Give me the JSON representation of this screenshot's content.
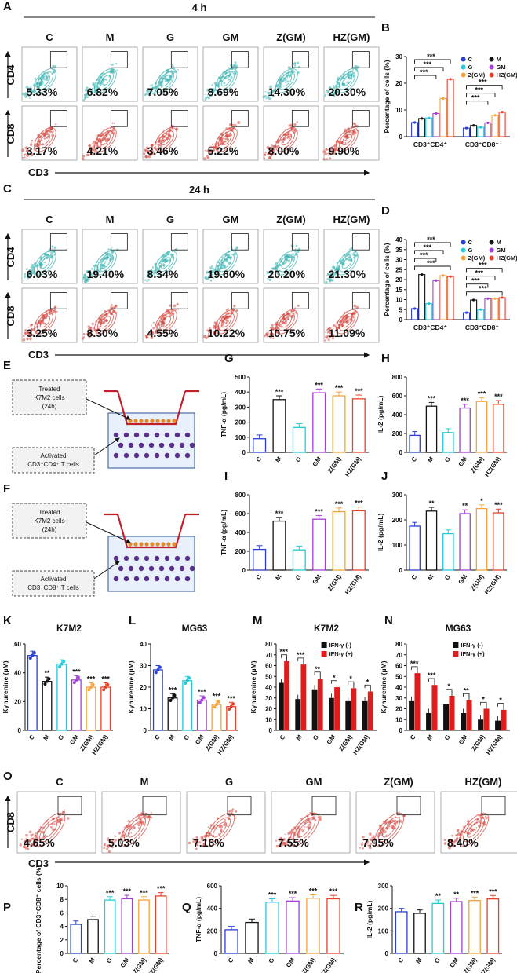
{
  "panel_letters": [
    "A",
    "B",
    "C",
    "D",
    "E",
    "F",
    "G",
    "H",
    "I",
    "J",
    "K",
    "L",
    "M",
    "N",
    "O",
    "P",
    "Q",
    "R"
  ],
  "group_labels": [
    "C",
    "M",
    "G",
    "GM",
    "Z(GM)",
    "HZ(GM)"
  ],
  "axis_names": {
    "cd4": "CD4",
    "cd8": "CD8",
    "cd3": "CD3"
  },
  "flow_A": {
    "header": "4 h",
    "cd4_percent": [
      "5.33%",
      "6.82%",
      "7.05%",
      "8.69%",
      "14.30%",
      "20.30%"
    ],
    "cd8_percent": [
      "3.17%",
      "4.21%",
      "3.46%",
      "5.22%",
      "8.00%",
      "9.90%"
    ]
  },
  "flow_C": {
    "header": "24 h",
    "cd4_percent": [
      "6.03%",
      "19.40%",
      "8.34%",
      "19.60%",
      "20.20%",
      "21.30%"
    ],
    "cd8_percent": [
      "3.25%",
      "8.30%",
      "4.55%",
      "10.22%",
      "10.75%",
      "11.09%"
    ]
  },
  "flow_O": {
    "cd8_percent": [
      "4.65%",
      "5.03%",
      "7.16%",
      "7.55%",
      "7.95%",
      "8.40%"
    ]
  },
  "diagram_E": {
    "box_top": [
      "Treated",
      "K7M2 cells",
      "(24h)"
    ],
    "box_bottom": [
      "Activated",
      "CD3⁺CD4⁺ T cells"
    ]
  },
  "diagram_F": {
    "box_top": [
      "Treated",
      "K7M2 cells",
      "(24h)"
    ],
    "box_bottom": [
      "Activated",
      "CD3⁺CD8⁺ T cells"
    ]
  },
  "colors": {
    "C": "#2a3fd6",
    "M": "#111111",
    "G": "#26c9d9",
    "GM": "#a33fd6",
    "Z(GM)": "#f5a43a",
    "HZ(GM)": "#e8402a",
    "teal": "#3bb3b0",
    "red": "#d4473f",
    "ifn_neg": "#111111",
    "ifn_pos": "#e01d1d"
  },
  "chart_data": [
    {
      "id": "B",
      "type": "bar",
      "categories": [
        "CD3⁺CD4⁺",
        "CD3⁺CD8⁺"
      ],
      "ylabel": "Percentage of cells (%)",
      "ylim": [
        0,
        30
      ],
      "yticks": [
        "0",
        "10",
        "20",
        "30"
      ],
      "legend": [
        "C",
        "M",
        "G",
        "GM",
        "Z(GM)",
        "HZ(GM)"
      ],
      "series": [
        {
          "name": "C",
          "values": [
            5.3,
            3.2
          ]
        },
        {
          "name": "M",
          "values": [
            6.8,
            4.2
          ]
        },
        {
          "name": "G",
          "values": [
            7.0,
            3.5
          ]
        },
        {
          "name": "GM",
          "values": [
            8.7,
            5.2
          ]
        },
        {
          "name": "Z(GM)",
          "values": [
            14.3,
            8.0
          ]
        },
        {
          "name": "HZ(GM)",
          "values": [
            21.5,
            9.2
          ]
        }
      ],
      "annotations": [
        "***",
        "***",
        "***",
        "***",
        "***",
        "***"
      ]
    },
    {
      "id": "D",
      "type": "bar",
      "categories": [
        "CD3⁺CD4⁺",
        "CD3⁺CD8⁺"
      ],
      "ylabel": "Percentage of cells (%)",
      "ylim": [
        0,
        40
      ],
      "yticks": [
        "0",
        "5",
        "10",
        "15",
        "20",
        "25",
        "30",
        "35",
        "40"
      ],
      "legend": [
        "C",
        "M",
        "G",
        "GM",
        "Z(GM)",
        "HZ(GM)"
      ],
      "series": [
        {
          "name": "C",
          "values": [
            5.5,
            3.5
          ]
        },
        {
          "name": "M",
          "values": [
            22.5,
            9.8
          ]
        },
        {
          "name": "G",
          "values": [
            8.0,
            5.0
          ]
        },
        {
          "name": "GM",
          "values": [
            19.5,
            10.5
          ]
        },
        {
          "name": "Z(GM)",
          "values": [
            22.0,
            10.5
          ]
        },
        {
          "name": "HZ(GM)",
          "values": [
            21.5,
            11.0
          ]
        }
      ],
      "annotations": [
        "***",
        "***",
        "***",
        "***",
        "***",
        "***",
        "***",
        "***"
      ]
    },
    {
      "id": "G",
      "type": "bar",
      "ylabel": "TNF-α (pg/mL)",
      "ylim": [
        0,
        500
      ],
      "yticks": [
        "0",
        "100",
        "200",
        "300",
        "400",
        "500"
      ],
      "categories": [
        "C",
        "M",
        "G",
        "GM",
        "Z(GM)",
        "HZ(GM)"
      ],
      "values": [
        90,
        350,
        165,
        395,
        375,
        355
      ],
      "stars": [
        "",
        "***",
        "",
        "***",
        "***",
        "***"
      ]
    },
    {
      "id": "H",
      "type": "bar",
      "ylabel": "IL-2 (pg/mL)",
      "ylim": [
        0,
        800
      ],
      "yticks": [
        "0",
        "200",
        "400",
        "600",
        "800"
      ],
      "categories": [
        "C",
        "M",
        "G",
        "GM",
        "Z(GM)",
        "HZ(GM)"
      ],
      "values": [
        180,
        490,
        210,
        470,
        540,
        510
      ],
      "stars": [
        "",
        "***",
        "",
        "***",
        "***",
        "***"
      ]
    },
    {
      "id": "I",
      "type": "bar",
      "ylabel": "TNF-α (pg/mL)",
      "ylim": [
        0,
        800
      ],
      "yticks": [
        "0",
        "200",
        "400",
        "600",
        "800"
      ],
      "categories": [
        "C",
        "M",
        "G",
        "GM",
        "Z(GM)",
        "HZ(GM)"
      ],
      "values": [
        220,
        520,
        215,
        540,
        620,
        630
      ],
      "stars": [
        "",
        "***",
        "",
        "***",
        "***",
        "***"
      ]
    },
    {
      "id": "J",
      "type": "bar",
      "ylabel": "IL-2 (pg/mL)",
      "ylim": [
        0,
        300
      ],
      "yticks": [
        "0",
        "100",
        "200",
        "300"
      ],
      "categories": [
        "C",
        "M",
        "G",
        "GM",
        "Z(GM)",
        "HZ(GM)"
      ],
      "values": [
        175,
        235,
        145,
        225,
        245,
        228
      ],
      "stars": [
        "",
        "**",
        "",
        "**",
        "*",
        "***"
      ]
    },
    {
      "id": "K",
      "type": "bar",
      "title": "K7M2",
      "ylabel": "Kynurenine (μM)",
      "ylim": [
        0,
        60
      ],
      "yticks": [
        "0",
        "20",
        "40",
        "60"
      ],
      "categories": [
        "C",
        "M",
        "G",
        "GM",
        "Z(GM)",
        "HZ(GM)"
      ],
      "values": [
        52,
        34,
        46,
        35,
        30,
        30
      ],
      "stars": [
        "",
        "**",
        "",
        "***",
        "***",
        "***"
      ]
    },
    {
      "id": "L",
      "type": "bar",
      "title": "MG63",
      "ylabel": "Kynurenine (μM)",
      "ylim": [
        0,
        40
      ],
      "yticks": [
        "0",
        "10",
        "20",
        "30",
        "40"
      ],
      "categories": [
        "C",
        "M",
        "G",
        "GM",
        "Z(GM)",
        "HZ(GM)"
      ],
      "values": [
        28,
        15,
        23,
        14,
        12,
        11
      ],
      "stars": [
        "",
        "***",
        "",
        "***",
        "***",
        "***"
      ]
    },
    {
      "id": "M",
      "type": "bar",
      "title": "K7M2",
      "ylabel": "Kynurenine (μM)",
      "ylim": [
        0,
        80
      ],
      "yticks": [
        "0",
        "10",
        "20",
        "30",
        "40",
        "50",
        "60",
        "70",
        "80"
      ],
      "categories": [
        "C",
        "M",
        "G",
        "GM",
        "Z(GM)",
        "HZ(GM)"
      ],
      "series": [
        {
          "name": "IFN-γ (-)",
          "values": [
            44,
            29,
            38,
            30,
            27,
            27
          ]
        },
        {
          "name": "IFN-γ (+)",
          "values": [
            64,
            61,
            48,
            40,
            39,
            36
          ]
        }
      ],
      "stars": [
        "***",
        "***",
        "**",
        "*",
        "*",
        "*"
      ]
    },
    {
      "id": "N",
      "type": "bar",
      "title": "MG63",
      "ylabel": "Kynurenine (μM)",
      "ylim": [
        0,
        80
      ],
      "yticks": [
        "0",
        "10",
        "20",
        "30",
        "40",
        "50",
        "60",
        "70",
        "80"
      ],
      "categories": [
        "C",
        "M",
        "G",
        "GM",
        "Z(GM)",
        "HZ(GM)"
      ],
      "series": [
        {
          "name": "IFN-γ (-)",
          "values": [
            27,
            16,
            24,
            16,
            10,
            9
          ]
        },
        {
          "name": "IFN-γ (+)",
          "values": [
            53,
            42,
            32,
            28,
            20,
            19
          ]
        }
      ],
      "stars": [
        "***",
        "***",
        "*",
        "**",
        "*",
        "*"
      ]
    },
    {
      "id": "P",
      "type": "bar",
      "ylabel": "Percentage of CD3⁺CD8⁺ cells (%)",
      "ylim": [
        0,
        10
      ],
      "yticks": [
        "0",
        "2",
        "4",
        "6",
        "8",
        "10"
      ],
      "categories": [
        "C",
        "M",
        "G",
        "GM",
        "Z(GM)",
        "HZ(GM)"
      ],
      "values": [
        4.3,
        5.0,
        7.9,
        8.1,
        7.9,
        8.5
      ],
      "stars": [
        "",
        "",
        "***",
        "***",
        "***",
        "***"
      ]
    },
    {
      "id": "Q",
      "type": "bar",
      "ylabel": "TNF-α (pg/mL)",
      "ylim": [
        0,
        600
      ],
      "yticks": [
        "0",
        "200",
        "400",
        "600"
      ],
      "categories": [
        "C",
        "M",
        "G",
        "GM",
        "Z(GM)",
        "HZ(GM)"
      ],
      "values": [
        210,
        275,
        455,
        465,
        490,
        485
      ],
      "stars": [
        "",
        "",
        "***",
        "***",
        "***",
        "***"
      ]
    },
    {
      "id": "R",
      "type": "bar",
      "ylabel": "IL-2 (pg/mL)",
      "ylim": [
        0,
        300
      ],
      "yticks": [
        "0",
        "100",
        "200",
        "300"
      ],
      "categories": [
        "C",
        "M",
        "G",
        "GM",
        "Z(GM)",
        "HZ(GM)"
      ],
      "values": [
        185,
        178,
        222,
        230,
        235,
        242
      ],
      "stars": [
        "",
        "",
        "**",
        "**",
        "***",
        "***"
      ]
    }
  ]
}
